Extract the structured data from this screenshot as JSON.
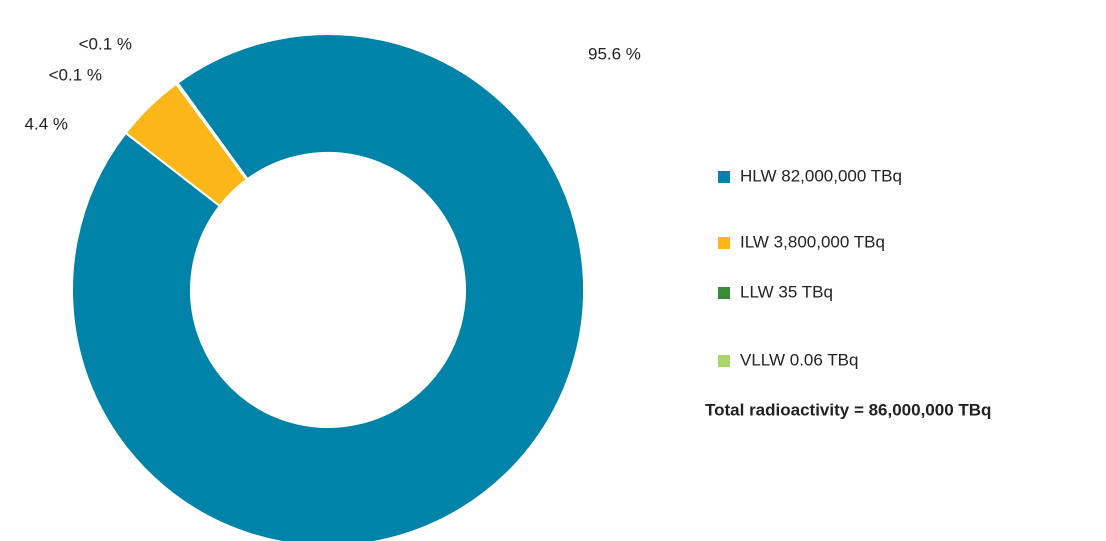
{
  "chart_data": {
    "type": "donut",
    "categories": [
      "HLW 82,000,000 TBq",
      "ILW 3,800,000 TBq",
      "LLW 35 TBq",
      "VLLW 0.06 TBq"
    ],
    "values": [
      95.6,
      4.4,
      0.05,
      0.05
    ],
    "value_labels": [
      "95.6 %",
      "4.4 %",
      "<0.1 %",
      "<0.1 %"
    ],
    "colors": [
      "#0083a9",
      "#fbb619",
      "#3a8a3a",
      "#a8d86a"
    ],
    "annotation": "Total radioactivity = 86,000,000 TBq"
  }
}
